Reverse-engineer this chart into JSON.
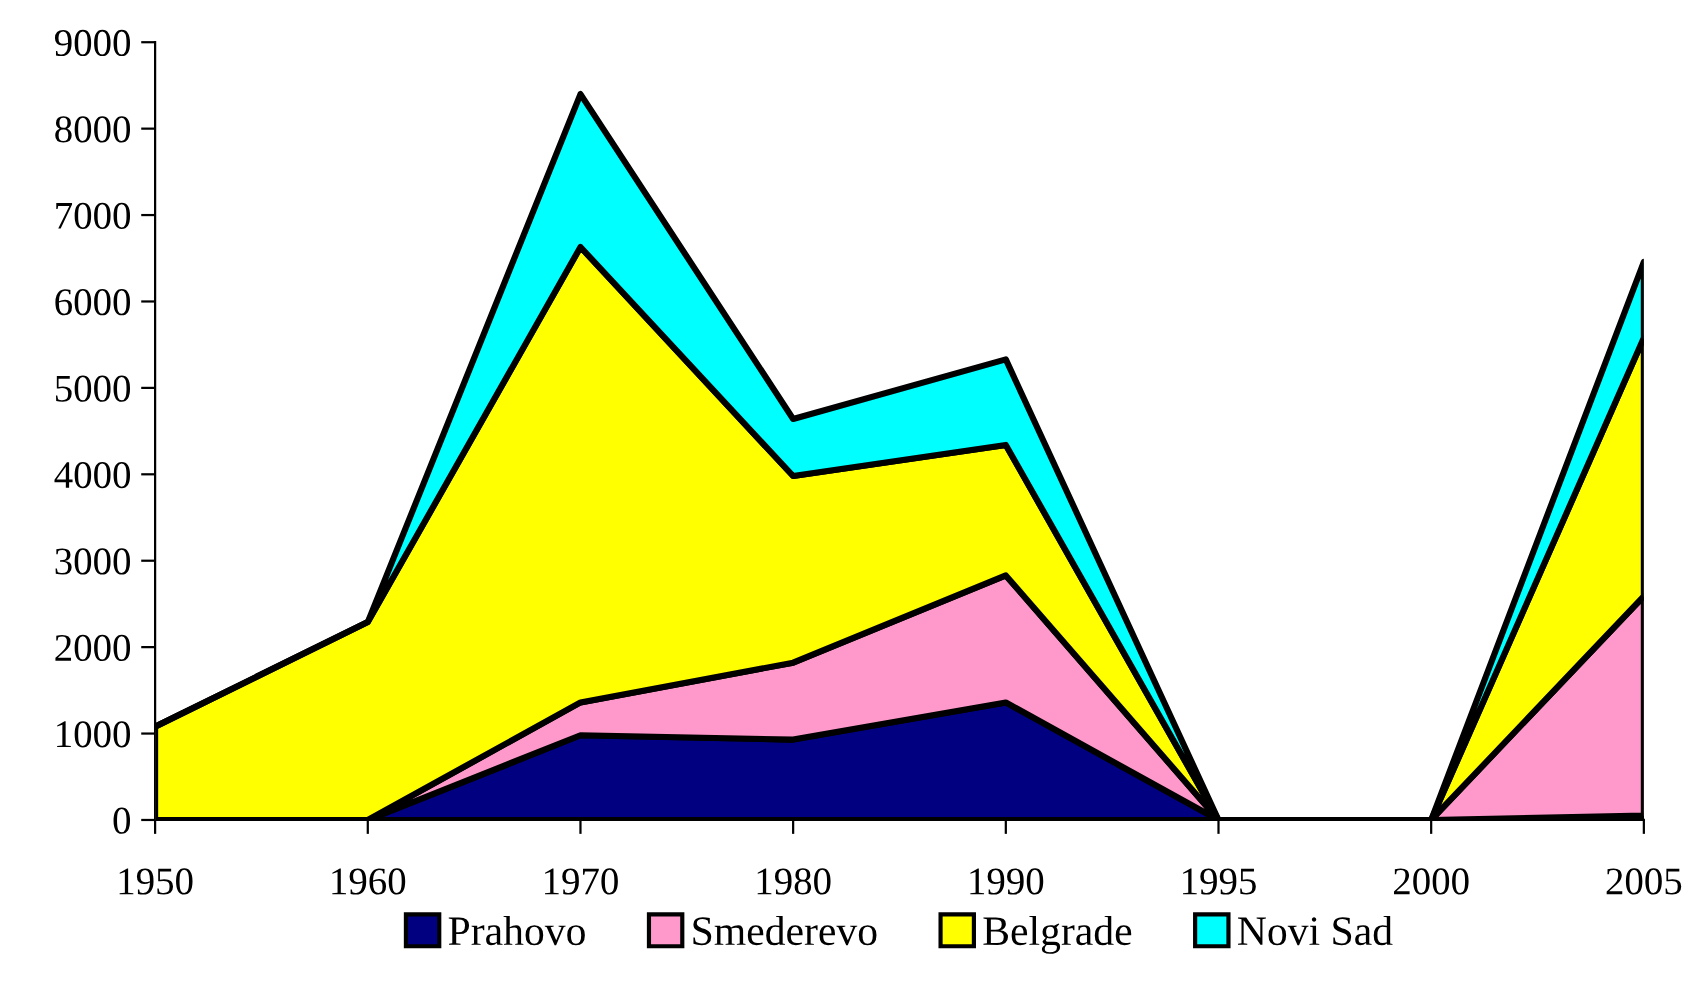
{
  "chart_data": {
    "type": "area",
    "stacked": true,
    "categories": [
      "1950",
      "1960",
      "1970",
      "1980",
      "1990",
      "1995",
      "2000",
      "2005"
    ],
    "series": [
      {
        "name": "Prahovo",
        "color": "#000080",
        "values": [
          0,
          0,
          980,
          930,
          1360,
          0,
          0,
          50
        ]
      },
      {
        "name": "Smederevo",
        "color": "#ff99cc",
        "values": [
          0,
          0,
          380,
          890,
          1470,
          0,
          0,
          2540
        ]
      },
      {
        "name": "Belgrade",
        "color": "#ffff00",
        "values": [
          1080,
          2290,
          5270,
          2160,
          1510,
          0,
          0,
          2990
        ]
      },
      {
        "name": "Novi Sad",
        "color": "#00ffff",
        "values": [
          0,
          0,
          1770,
          660,
          990,
          0,
          0,
          880
        ]
      }
    ],
    "ylim": [
      0,
      9000
    ],
    "yticks": [
      0,
      1000,
      2000,
      3000,
      4000,
      5000,
      6000,
      7000,
      8000,
      9000
    ],
    "grid": false,
    "legend": "bottom"
  }
}
